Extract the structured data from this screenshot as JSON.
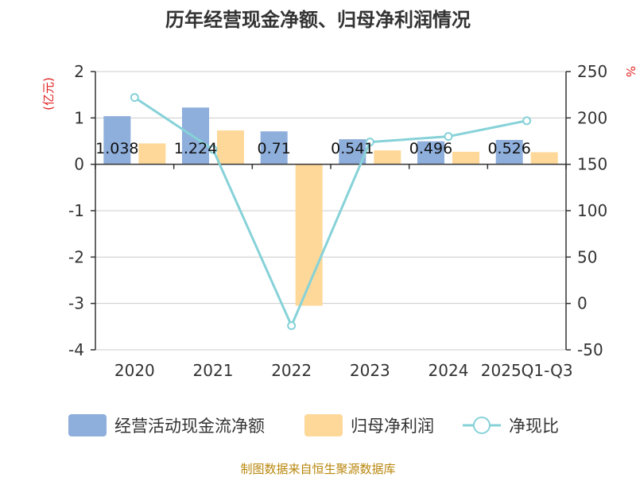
{
  "chart_data": {
    "type": "bar",
    "title": "历年经营现金净额、归母净利润情况",
    "categories": [
      "2020",
      "2021",
      "2022",
      "2023",
      "2024",
      "2025Q1-Q3"
    ],
    "left_axis": {
      "unit": "(亿元)",
      "min": -4,
      "max": 2,
      "ticks": [
        2,
        1,
        0,
        -1,
        -2,
        -3,
        -4
      ]
    },
    "right_axis": {
      "unit": "%",
      "min": -50,
      "max": 250,
      "ticks": [
        250,
        200,
        150,
        100,
        50,
        0,
        -50
      ]
    },
    "series": [
      {
        "name": "经营活动现金流净额",
        "kind": "bar",
        "axis": "left",
        "color": "#8eaedb",
        "values": [
          1.038,
          1.224,
          0.71,
          0.541,
          0.496,
          0.526
        ],
        "labels": [
          "1.038",
          "1.224",
          "0.71",
          "0.541",
          "0.496",
          "0.526"
        ]
      },
      {
        "name": "归母净利润",
        "kind": "bar",
        "axis": "left",
        "color": "#fdd899",
        "values": [
          0.45,
          0.73,
          -3.05,
          0.3,
          0.27,
          0.26
        ]
      },
      {
        "name": "净现比",
        "kind": "line",
        "axis": "right",
        "color": "#86d2d8",
        "values": [
          222,
          166,
          -24,
          174,
          180,
          197
        ]
      }
    ],
    "grid": true,
    "legend": "bottom"
  },
  "footer": {
    "source": "制图数据来自恒生聚源数据库"
  }
}
